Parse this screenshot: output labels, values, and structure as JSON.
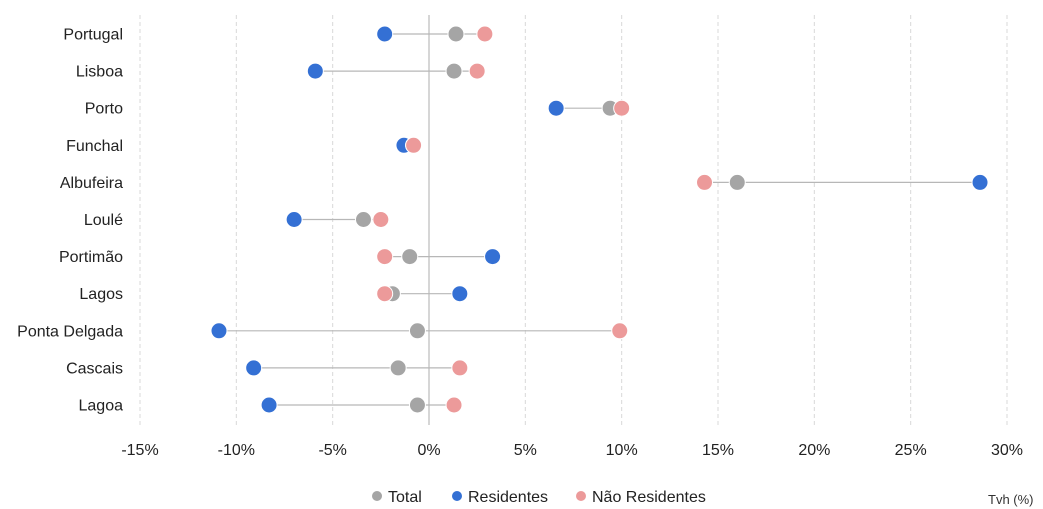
{
  "chart_data": {
    "type": "scatter",
    "subtype": "dot-plot",
    "orientation": "horizontal",
    "categories": [
      "Portugal",
      "Lisboa",
      "Porto",
      "Funchal",
      "Albufeira",
      "Loulé",
      "Portimão",
      "Lagos",
      "Ponta Delgada",
      "Cascais",
      "Lagoa"
    ],
    "series": [
      {
        "name": "Total",
        "color": "#a5a5a5",
        "values": [
          1.4,
          1.3,
          9.4,
          -0.8,
          16.0,
          -3.4,
          -1.0,
          -1.9,
          -0.6,
          -1.6,
          -0.6
        ]
      },
      {
        "name": "Residentes",
        "color": "#3470d4",
        "values": [
          -2.3,
          -5.9,
          6.6,
          -1.3,
          28.6,
          -7.0,
          3.3,
          1.6,
          -10.9,
          -9.1,
          -8.3
        ]
      },
      {
        "name": "Não Residentes",
        "color": "#ec9a9a",
        "values": [
          2.9,
          2.5,
          10.0,
          -0.8,
          14.3,
          -2.5,
          -2.3,
          -2.3,
          9.9,
          1.6,
          1.3
        ]
      }
    ],
    "xlim": [
      -15,
      30
    ],
    "xticks": [
      "-15%",
      "-10%",
      "-5%",
      "0%",
      "5%",
      "10%",
      "15%",
      "20%",
      "25%",
      "30%"
    ],
    "xtick_values": [
      -15,
      -10,
      -5,
      0,
      5,
      10,
      15,
      20,
      25,
      30
    ],
    "grid": "vertical-dashed",
    "legend": "bottom-center",
    "unit_label": "Tvh (%)",
    "connector_color": "#b7b7b7"
  }
}
